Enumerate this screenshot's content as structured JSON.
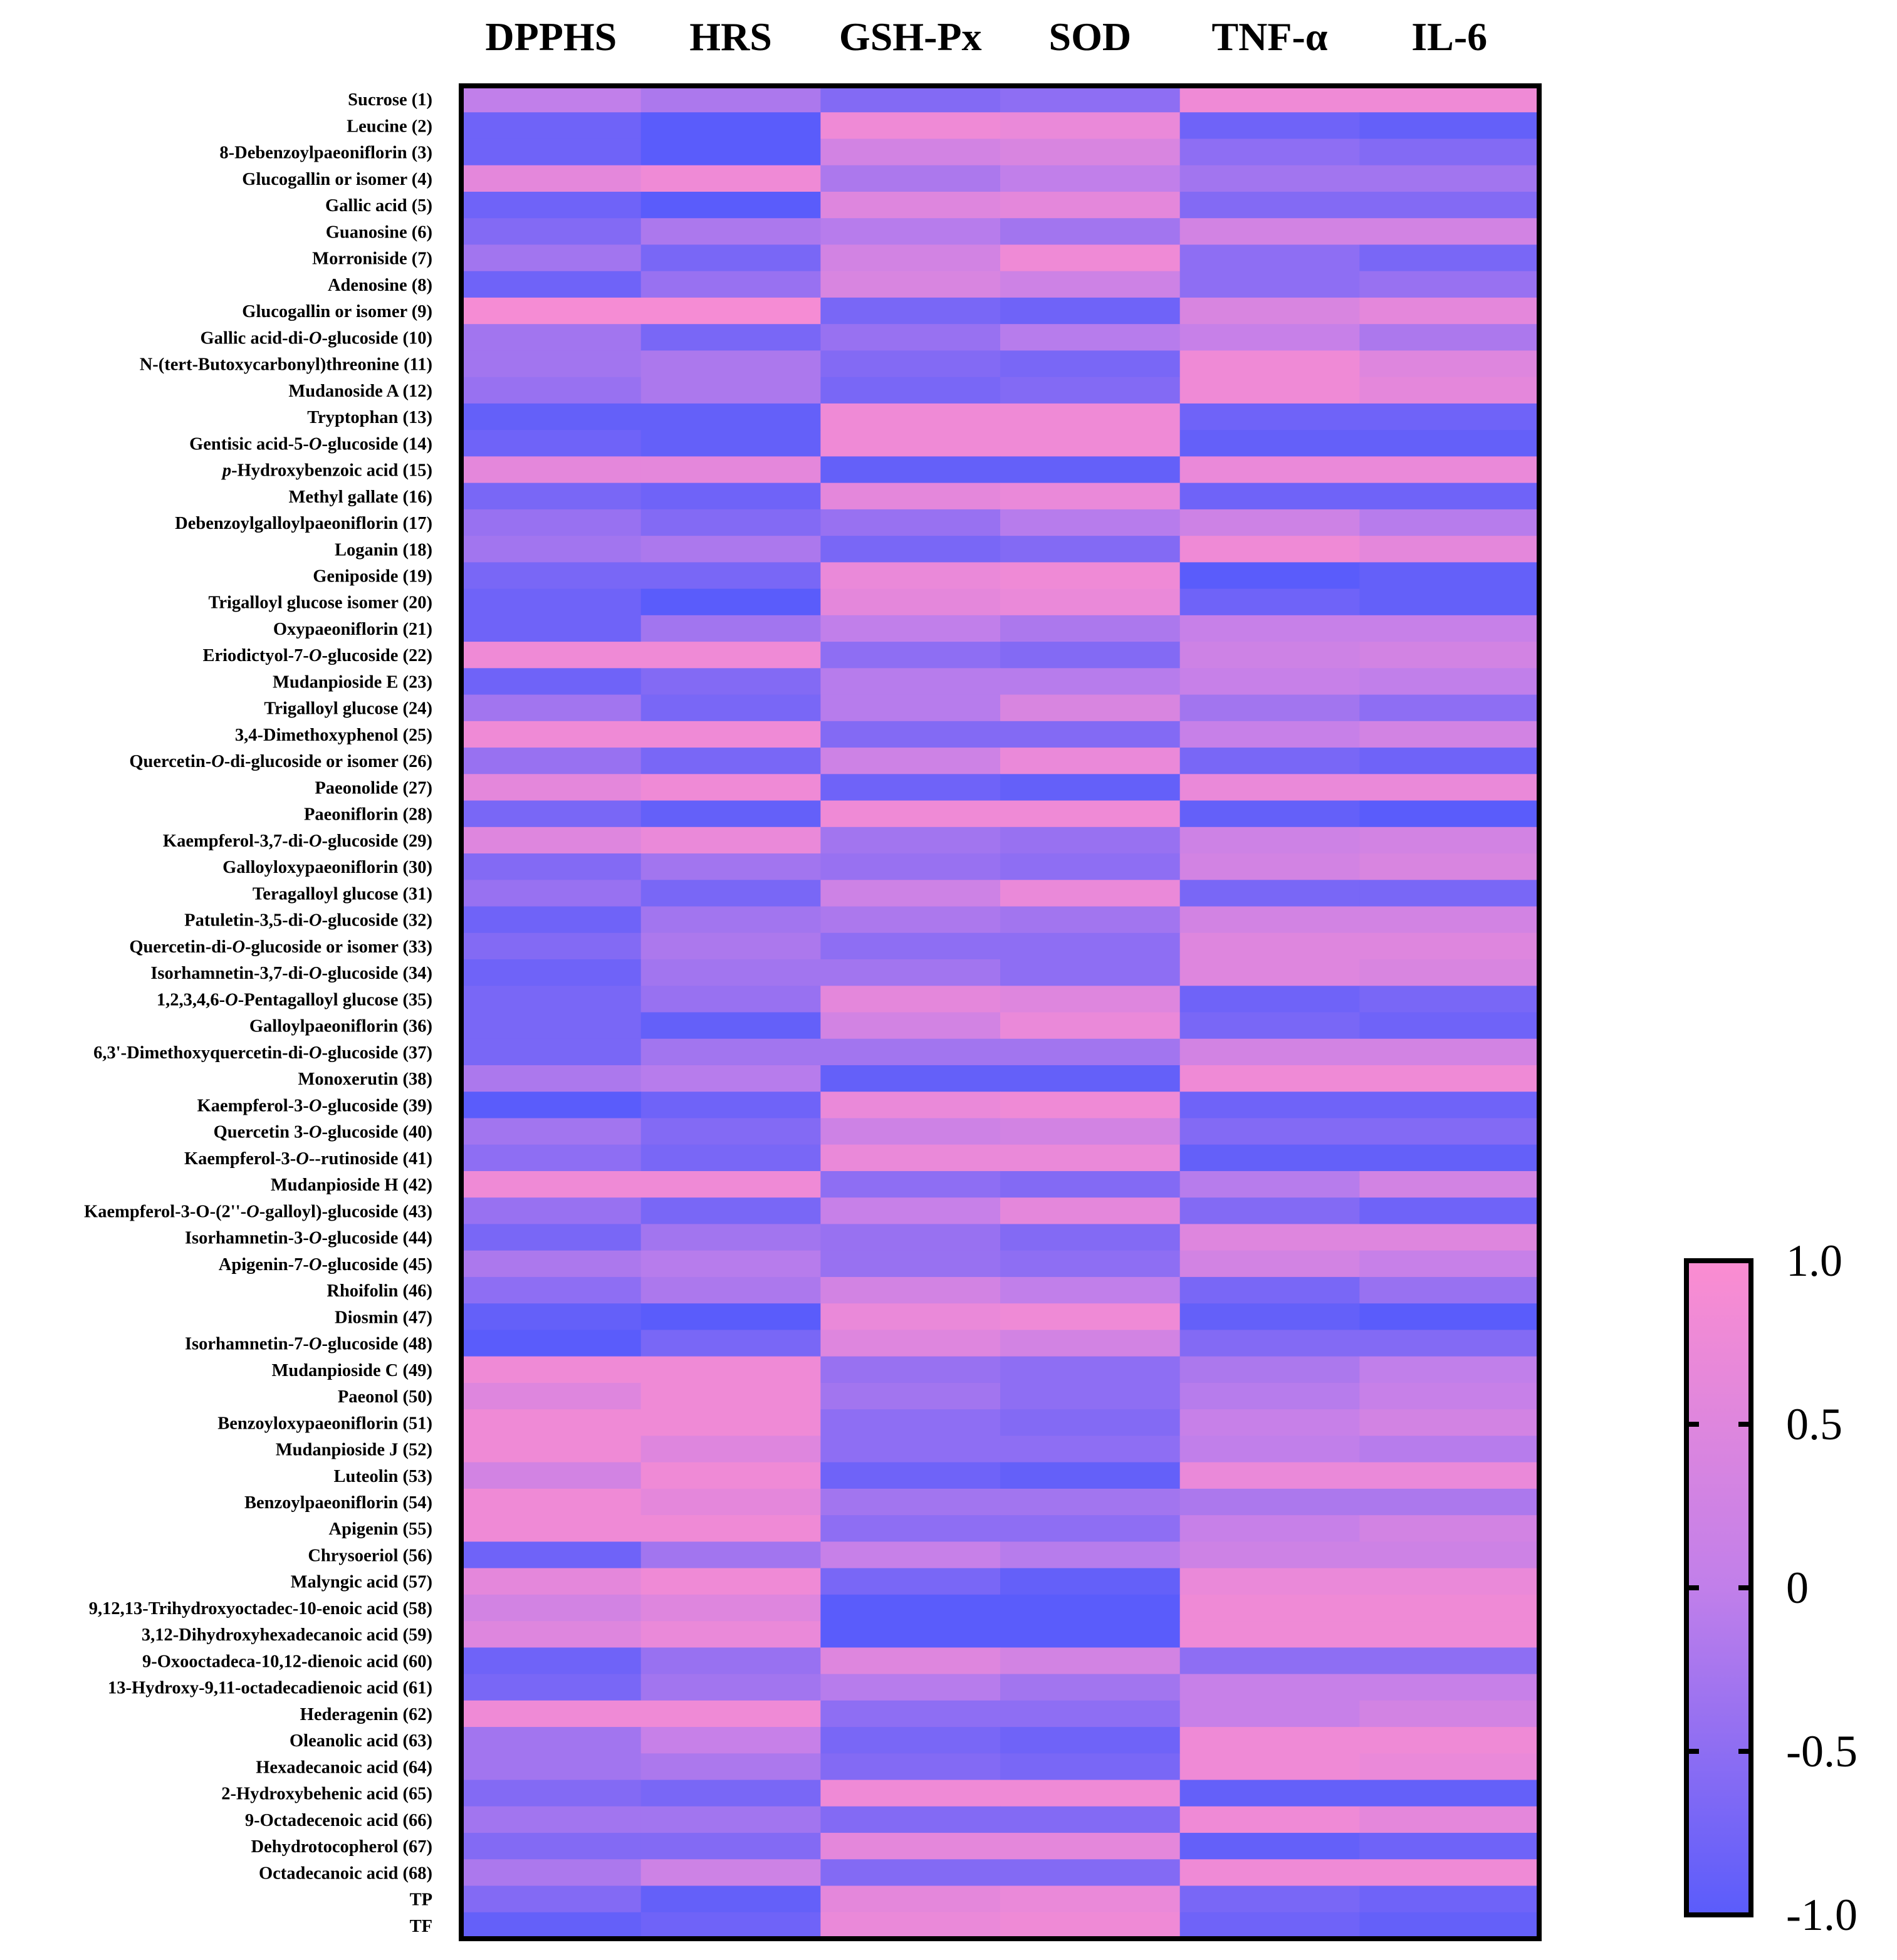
{
  "chart_data": {
    "type": "heatmap",
    "title": "",
    "columns": [
      "DPPHS",
      "HRS",
      "GSH-Px",
      "SOD",
      "TNF-α",
      "IL-6"
    ],
    "rows": [
      {
        "pre": "",
        "it": "",
        "post": "Sucrose (1)"
      },
      {
        "pre": "",
        "it": "",
        "post": "Leucine (2)"
      },
      {
        "pre": "",
        "it": "",
        "post": "8-Debenzoylpaeoniflorin (3)"
      },
      {
        "pre": "",
        "it": "",
        "post": "Glucogallin or isomer (4)"
      },
      {
        "pre": "",
        "it": "",
        "post": "Gallic acid (5)"
      },
      {
        "pre": "",
        "it": "",
        "post": "Guanosine  (6)"
      },
      {
        "pre": "",
        "it": "",
        "post": "Morroniside (7)"
      },
      {
        "pre": "",
        "it": "",
        "post": "Adenosine (8)"
      },
      {
        "pre": "",
        "it": "",
        "post": "Glucogallin or isomer (9)"
      },
      {
        "pre": "Gallic acid-di-",
        "it": "O",
        "post": "-glucoside (10)"
      },
      {
        "pre": "",
        "it": "",
        "post": "N-(tert-Butoxycarbonyl)threonine (11)"
      },
      {
        "pre": "",
        "it": "",
        "post": "Mudanoside A (12)"
      },
      {
        "pre": "",
        "it": "",
        "post": "Tryptophan (13)"
      },
      {
        "pre": "Gentisic acid-5-",
        "it": "O",
        "post": "-glucoside (14)"
      },
      {
        "pre": "",
        "it": "p",
        "post": "-Hydroxybenzoic acid (15)"
      },
      {
        "pre": "",
        "it": "",
        "post": "Methyl gallate (16)"
      },
      {
        "pre": "",
        "it": "",
        "post": "Debenzoylgalloylpaeoniflorin (17)"
      },
      {
        "pre": "",
        "it": "",
        "post": "Loganin (18)"
      },
      {
        "pre": "",
        "it": "",
        "post": "Geniposide (19)"
      },
      {
        "pre": "",
        "it": "",
        "post": "Trigalloyl glucose isomer (20)"
      },
      {
        "pre": "",
        "it": "",
        "post": "Oxypaeoniflorin (21)"
      },
      {
        "pre": "Eriodictyol-7-",
        "it": "O",
        "post": "-glucoside (22)"
      },
      {
        "pre": "",
        "it": "",
        "post": "Mudanpioside E (23)"
      },
      {
        "pre": "",
        "it": "",
        "post": "Trigalloyl glucose (24)"
      },
      {
        "pre": "",
        "it": "",
        "post": "3,4-Dimethoxyphenol (25)"
      },
      {
        "pre": "Quercetin-",
        "it": "O",
        "post": "-di-glucoside or isomer (26)"
      },
      {
        "pre": "",
        "it": "",
        "post": "Paeonolide (27)"
      },
      {
        "pre": "",
        "it": "",
        "post": "Paeoniflorin (28)"
      },
      {
        "pre": "Kaempferol-3,7-di-",
        "it": "O",
        "post": "-glucoside (29)"
      },
      {
        "pre": "",
        "it": "",
        "post": "Galloyloxypaeoniflorin (30)"
      },
      {
        "pre": "",
        "it": "",
        "post": "Teragalloyl glucose (31)"
      },
      {
        "pre": "Patuletin-3,5-di-",
        "it": "O",
        "post": "-glucoside (32)"
      },
      {
        "pre": "Quercetin-di-",
        "it": "O",
        "post": "-glucoside or isomer (33)"
      },
      {
        "pre": "Isorhamnetin-3,7-di-",
        "it": "O",
        "post": "-glucoside (34)"
      },
      {
        "pre": "1,2,3,4,6-",
        "it": "O",
        "post": "-Pentagalloyl glucose (35)"
      },
      {
        "pre": "",
        "it": "",
        "post": "Galloylpaeoniflorin (36)"
      },
      {
        "pre": "6,3'-Dimethoxyquercetin-di-",
        "it": "O",
        "post": "-glucoside (37)"
      },
      {
        "pre": "",
        "it": "",
        "post": "Monoxerutin (38)"
      },
      {
        "pre": "Kaempferol-3-",
        "it": "O",
        "post": "-glucoside (39)"
      },
      {
        "pre": "Quercetin 3-",
        "it": "O",
        "post": "-glucoside (40)"
      },
      {
        "pre": "Kaempferol-3-",
        "it": "O",
        "post": "--rutinoside (41)"
      },
      {
        "pre": "",
        "it": "",
        "post": "Mudanpioside H (42)"
      },
      {
        "pre": "Kaempferol-3-O-(2''-",
        "it": "O",
        "post": "-galloyl)-glucoside (43)"
      },
      {
        "pre": "Isorhamnetin-3-",
        "it": "O",
        "post": "-glucoside (44)"
      },
      {
        "pre": "Apigenin-7-",
        "it": "O",
        "post": "-glucoside (45)"
      },
      {
        "pre": "",
        "it": "",
        "post": "Rhoifolin (46)"
      },
      {
        "pre": "",
        "it": "",
        "post": "Diosmin (47)"
      },
      {
        "pre": "Isorhamnetin-7-",
        "it": "O",
        "post": "-glucoside (48)"
      },
      {
        "pre": "",
        "it": "",
        "post": "Mudanpioside C (49)"
      },
      {
        "pre": "",
        "it": "",
        "post": "Paeonol (50)"
      },
      {
        "pre": "",
        "it": "",
        "post": "Benzoyloxypaeoniflorin (51)"
      },
      {
        "pre": "",
        "it": "",
        "post": "Mudanpioside J (52)"
      },
      {
        "pre": "",
        "it": "",
        "post": "Luteolin (53)"
      },
      {
        "pre": "",
        "it": "",
        "post": "Benzoylpaeoniflorin (54)"
      },
      {
        "pre": "",
        "it": "",
        "post": "Apigenin (55)"
      },
      {
        "pre": "",
        "it": "",
        "post": "Chrysoeriol (56)"
      },
      {
        "pre": "",
        "it": "",
        "post": "Malyngic acid (57)"
      },
      {
        "pre": "",
        "it": "",
        "post": "9,12,13-Trihydroxyoctadec-10-enoic acid (58)"
      },
      {
        "pre": "",
        "it": "",
        "post": "3,12-Dihydroxyhexadecanoic acid (59)"
      },
      {
        "pre": "",
        "it": "",
        "post": "9-Oxooctadeca-10,12-dienoic acid (60)"
      },
      {
        "pre": "",
        "it": "",
        "post": "13-Hydroxy-9,11-octadecadienoic acid (61)"
      },
      {
        "pre": "",
        "it": "",
        "post": "Hederagenin (62)"
      },
      {
        "pre": "",
        "it": "",
        "post": "Oleanolic acid (63)"
      },
      {
        "pre": "",
        "it": "",
        "post": "Hexadecanoic acid (64)"
      },
      {
        "pre": "",
        "it": "",
        "post": "2-Hydroxybehenic acid (65)"
      },
      {
        "pre": "",
        "it": "",
        "post": "9-Octadecenoic acid (66)"
      },
      {
        "pre": "",
        "it": "",
        "post": "Dehydrotocopherol (67)"
      },
      {
        "pre": "",
        "it": "",
        "post": "Octadecanoic acid (68)"
      },
      {
        "pre": "",
        "it": "",
        "post": "TP"
      },
      {
        "pre": "",
        "it": "",
        "post": "TF"
      }
    ],
    "values": [
      [
        0.0,
        -0.2,
        -0.6,
        -0.5,
        0.8,
        0.8
      ],
      [
        -0.8,
        -1.0,
        0.8,
        0.7,
        -0.8,
        -0.9
      ],
      [
        -0.8,
        -1.0,
        0.3,
        0.4,
        -0.5,
        -0.6
      ],
      [
        0.6,
        0.8,
        -0.2,
        0.0,
        -0.3,
        -0.3
      ],
      [
        -0.8,
        -1.0,
        0.5,
        0.6,
        -0.6,
        -0.6
      ],
      [
        -0.6,
        -0.2,
        -0.1,
        -0.3,
        0.3,
        0.3
      ],
      [
        -0.3,
        -0.7,
        0.3,
        0.8,
        -0.5,
        -0.7
      ],
      [
        -0.8,
        -0.4,
        0.4,
        0.2,
        -0.5,
        -0.4
      ],
      [
        0.9,
        0.9,
        -0.7,
        -0.8,
        0.4,
        0.6
      ],
      [
        -0.3,
        -0.7,
        -0.4,
        -0.1,
        0.1,
        -0.2
      ],
      [
        -0.3,
        -0.2,
        -0.6,
        -0.7,
        0.8,
        0.5
      ],
      [
        -0.4,
        -0.2,
        -0.7,
        -0.6,
        0.8,
        0.6
      ],
      [
        -0.9,
        -0.9,
        0.8,
        0.8,
        -0.8,
        -0.8
      ],
      [
        -0.8,
        -0.9,
        0.8,
        0.8,
        -0.9,
        -0.9
      ],
      [
        0.6,
        0.6,
        -0.9,
        -0.9,
        0.7,
        0.7
      ],
      [
        -0.7,
        -0.8,
        0.6,
        0.7,
        -0.8,
        -0.8
      ],
      [
        -0.4,
        -0.6,
        -0.4,
        -0.1,
        0.2,
        -0.1
      ],
      [
        -0.3,
        -0.2,
        -0.7,
        -0.6,
        0.8,
        0.6
      ],
      [
        -0.7,
        -0.7,
        0.7,
        0.8,
        -1.0,
        -0.9
      ],
      [
        -0.8,
        -1.0,
        0.6,
        0.7,
        -0.8,
        -0.9
      ],
      [
        -0.8,
        -0.3,
        0.0,
        -0.2,
        0.1,
        0.1
      ],
      [
        0.8,
        0.8,
        -0.5,
        -0.6,
        0.2,
        0.3
      ],
      [
        -0.8,
        -0.6,
        -0.1,
        -0.1,
        0.1,
        0.0
      ],
      [
        -0.3,
        -0.7,
        -0.1,
        0.4,
        -0.3,
        -0.5
      ],
      [
        0.8,
        0.8,
        -0.6,
        -0.6,
        0.1,
        0.3
      ],
      [
        -0.4,
        -0.7,
        0.2,
        0.7,
        -0.7,
        -0.8
      ],
      [
        0.6,
        0.8,
        -0.8,
        -0.9,
        0.7,
        0.7
      ],
      [
        -0.7,
        -0.9,
        0.8,
        0.8,
        -0.9,
        -1.0
      ],
      [
        0.5,
        0.7,
        -0.3,
        -0.4,
        0.2,
        0.3
      ],
      [
        -0.6,
        -0.3,
        -0.4,
        -0.5,
        0.3,
        0.4
      ],
      [
        -0.4,
        -0.7,
        0.2,
        0.7,
        -0.7,
        -0.7
      ],
      [
        -0.8,
        -0.3,
        -0.2,
        -0.3,
        0.3,
        0.3
      ],
      [
        -0.6,
        -0.2,
        -0.5,
        -0.5,
        0.5,
        0.5
      ],
      [
        -0.8,
        -0.3,
        -0.3,
        -0.5,
        0.5,
        0.4
      ],
      [
        -0.7,
        -0.4,
        0.6,
        0.5,
        -0.8,
        -0.7
      ],
      [
        -0.7,
        -0.9,
        0.3,
        0.7,
        -0.7,
        -0.8
      ],
      [
        -0.7,
        -0.3,
        -0.3,
        -0.3,
        0.3,
        0.3
      ],
      [
        -0.2,
        -0.1,
        -0.9,
        -0.9,
        0.8,
        0.8
      ],
      [
        -1.0,
        -0.8,
        0.7,
        0.8,
        -0.8,
        -0.8
      ],
      [
        -0.3,
        -0.6,
        0.2,
        0.3,
        -0.6,
        -0.6
      ],
      [
        -0.5,
        -0.7,
        0.7,
        0.7,
        -0.9,
        -0.9
      ],
      [
        0.8,
        0.8,
        -0.5,
        -0.6,
        -0.1,
        0.3
      ],
      [
        -0.4,
        -0.7,
        0.1,
        0.6,
        -0.6,
        -0.8
      ],
      [
        -0.7,
        -0.3,
        -0.4,
        -0.6,
        0.5,
        0.5
      ],
      [
        -0.2,
        -0.1,
        -0.4,
        -0.5,
        0.3,
        0.1
      ],
      [
        -0.5,
        -0.2,
        0.3,
        0.0,
        -0.7,
        -0.4
      ],
      [
        -0.9,
        -1.0,
        0.7,
        0.8,
        -0.9,
        -1.0
      ],
      [
        -1.0,
        -0.7,
        0.5,
        0.3,
        -0.6,
        -0.6
      ],
      [
        0.8,
        0.8,
        -0.4,
        -0.5,
        -0.2,
        0.0
      ],
      [
        0.5,
        0.8,
        -0.3,
        -0.5,
        -0.1,
        0.1
      ],
      [
        0.8,
        0.8,
        -0.5,
        -0.6,
        0.1,
        0.3
      ],
      [
        0.8,
        0.5,
        -0.5,
        -0.5,
        0.0,
        -0.1
      ],
      [
        0.3,
        0.8,
        -0.8,
        -0.9,
        0.7,
        0.7
      ],
      [
        0.8,
        0.6,
        -0.3,
        -0.3,
        -0.2,
        -0.2
      ],
      [
        0.8,
        0.8,
        -0.5,
        -0.5,
        0.1,
        0.3
      ],
      [
        -0.8,
        -0.3,
        0.1,
        -0.1,
        0.2,
        0.2
      ],
      [
        0.6,
        0.8,
        -0.7,
        -0.9,
        0.7,
        0.7
      ],
      [
        0.3,
        0.5,
        -1.0,
        -1.0,
        0.8,
        0.8
      ],
      [
        0.5,
        0.7,
        -1.0,
        -1.0,
        0.8,
        0.8
      ],
      [
        -0.8,
        -0.4,
        0.5,
        0.3,
        -0.5,
        -0.5
      ],
      [
        -0.7,
        -0.3,
        -0.1,
        -0.3,
        0.1,
        0.1
      ],
      [
        0.8,
        0.8,
        -0.5,
        -0.5,
        0.1,
        0.3
      ],
      [
        -0.3,
        0.1,
        -0.7,
        -0.8,
        0.8,
        0.8
      ],
      [
        -0.3,
        -0.2,
        -0.6,
        -0.7,
        0.8,
        0.7
      ],
      [
        -0.6,
        -0.7,
        0.8,
        0.8,
        -0.9,
        -0.9
      ],
      [
        -0.3,
        -0.3,
        -0.6,
        -0.6,
        0.8,
        0.6
      ],
      [
        -0.6,
        -0.6,
        0.6,
        0.6,
        -0.9,
        -0.8
      ],
      [
        -0.2,
        0.2,
        -0.6,
        -0.6,
        0.8,
        0.8
      ],
      [
        -0.6,
        -0.9,
        0.6,
        0.7,
        -0.7,
        -0.8
      ],
      [
        -0.9,
        -0.8,
        0.7,
        0.8,
        -0.8,
        -0.9
      ]
    ],
    "colorbar": {
      "min": -1.0,
      "max": 1.0,
      "ticks": [
        "1.0",
        "0.5",
        "0",
        "-0.5",
        "-1.0"
      ],
      "tick_values": [
        1.0,
        0.5,
        0.0,
        -0.5,
        -1.0
      ],
      "color_low": "#5a5cfb",
      "color_mid": "#c17fea",
      "color_high": "#fb8dd1"
    }
  }
}
